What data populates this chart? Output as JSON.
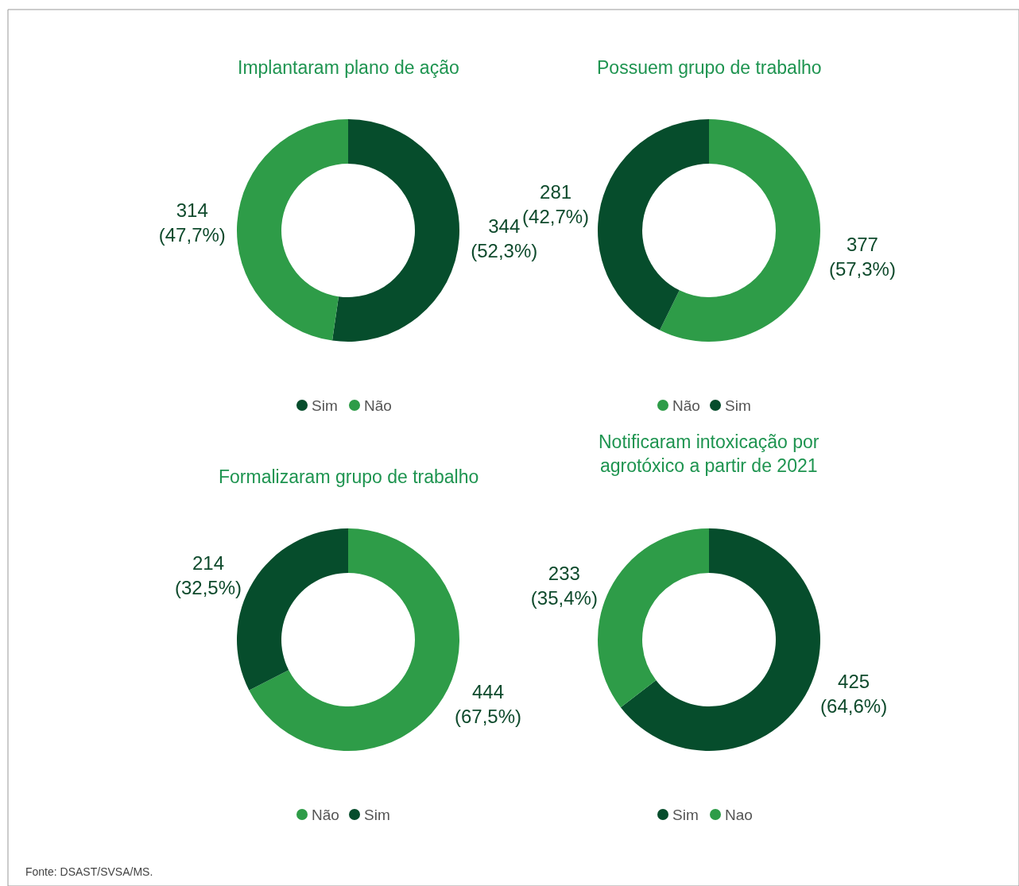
{
  "chart_data": [
    {
      "type": "donut",
      "title": "Implantaram plano de ação",
      "categories": [
        "Sim",
        "Não"
      ],
      "values": [
        344,
        314
      ],
      "colors": [
        "#064d2c",
        "#2e9c48"
      ],
      "value_labels": [
        "344\n(52,3%)",
        "314\n(47,7%)"
      ],
      "legend": "bottom",
      "annotations": [
        "Fonte: DSAST/SVSA/MS."
      ]
    },
    {
      "type": "donut",
      "title": "Possuem grupo de trabalho",
      "categories": [
        "Não",
        "Sim"
      ],
      "values": [
        377,
        281
      ],
      "colors": [
        "#2e9c48",
        "#064d2c"
      ],
      "value_labels": [
        "377\n(57,3%)",
        "281\n(42,7%)"
      ],
      "legend": "bottom"
    },
    {
      "type": "donut",
      "title": "Formalizaram grupo de trabalho",
      "categories": [
        "Não",
        "Sim"
      ],
      "values": [
        444,
        214
      ],
      "colors": [
        "#2e9c48",
        "#064d2c"
      ],
      "value_labels": [
        "444\n(67,5%)",
        "214\n(32,5%)"
      ],
      "legend": "bottom"
    },
    {
      "type": "donut",
      "title": "Notificaram intoxicação por\nagrotóxico a partir de 2021",
      "categories": [
        "Sim",
        "Nao"
      ],
      "values": [
        425,
        233
      ],
      "colors": [
        "#064d2c",
        "#2e9c48"
      ],
      "value_labels": [
        "425\n(64,6%)",
        "233\n(35,4%)"
      ],
      "legend": "bottom"
    }
  ]
}
